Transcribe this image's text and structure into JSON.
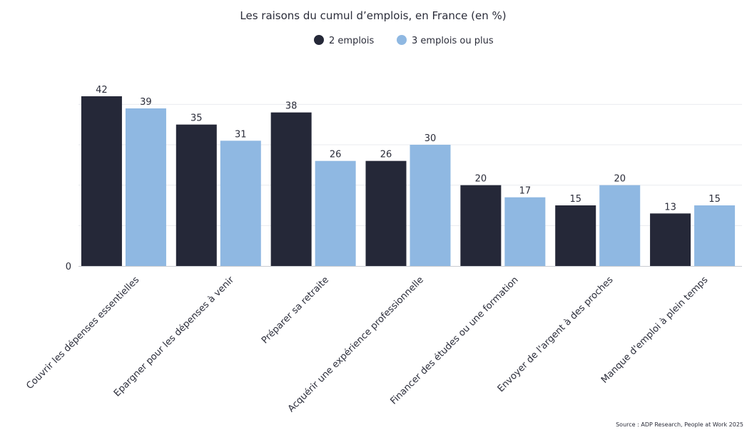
{
  "chart_data": {
    "type": "bar",
    "title": "Les raisons du cumul d’emplois, en France (en %)",
    "categories": [
      "Couvrir les dépenses essentielles",
      "Epargner pour les dépenses à venir",
      "Préparer sa retraite",
      "Acquérir une expérience professionnelle",
      "Financer des études ou une formation",
      "Envoyer de l'argent à des proches",
      "Manque d'emploi à plein temps"
    ],
    "series": [
      {
        "name": "2 emplois",
        "color": "#252838",
        "values": [
          42,
          35,
          38,
          26,
          20,
          15,
          13
        ]
      },
      {
        "name": "3 emplois ou plus",
        "color": "#8fb8e2",
        "values": [
          39,
          31,
          26,
          30,
          17,
          20,
          15
        ]
      }
    ],
    "ylim": [
      0,
      45
    ],
    "yticks": [
      {
        "value": 0,
        "label": "0"
      }
    ],
    "grid": true,
    "legend": "top-center",
    "source": "Source : ADP Research, People at Work 2025"
  }
}
